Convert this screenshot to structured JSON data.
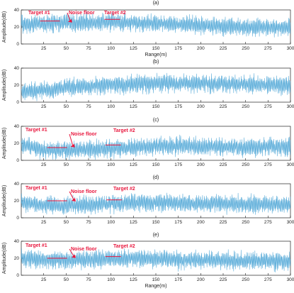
{
  "chart_data": [
    {
      "type": "line",
      "title": "(a)",
      "xlabel": "Range(m)",
      "ylabel": "Amplitude(dB)",
      "xlim": [
        0,
        300
      ],
      "ylim": [
        0,
        40
      ],
      "xticks": [
        "25",
        "50",
        "75",
        "100",
        "125",
        "150",
        "175",
        "200",
        "225",
        "250",
        "275",
        "300"
      ],
      "yticks": [
        "0",
        "20",
        "40"
      ],
      "grid": false,
      "series": [
        {
          "color": "#3f9fd3",
          "x": [
            0,
            25,
            50,
            75,
            100,
            125,
            150,
            175,
            200,
            225,
            250,
            275,
            300
          ],
          "y": [
            23,
            24,
            25,
            25,
            26,
            25,
            24,
            23,
            22,
            21,
            20,
            20,
            19
          ]
        }
      ],
      "annotations": [
        {
          "text": "Target #1",
          "x": 32,
          "y": 27
        },
        {
          "text": "Noise floor",
          "x": 52,
          "y": 26
        },
        {
          "text": "Target #2",
          "x": 103,
          "y": 29
        }
      ]
    },
    {
      "type": "line",
      "title": "(b)",
      "xlabel": "",
      "ylabel": "Amplitude(dB)",
      "xlim": [
        0,
        300
      ],
      "ylim": [
        0,
        40
      ],
      "xticks": [
        "25",
        "50",
        "75",
        "100",
        "125",
        "150",
        "175",
        "200",
        "225",
        "250",
        "275",
        "300"
      ],
      "yticks": [
        "0",
        "20",
        "40"
      ],
      "grid": false,
      "series": [
        {
          "color": "#3f9fd3",
          "x": [
            0,
            25,
            50,
            75,
            100,
            125,
            150,
            175,
            200,
            225,
            250,
            275,
            300
          ],
          "y": [
            12,
            14,
            17,
            19,
            20,
            21,
            22,
            22,
            22,
            21,
            21,
            20,
            20
          ]
        }
      ],
      "annotations": []
    },
    {
      "type": "line",
      "title": "(c)",
      "xlabel": "",
      "ylabel": "Amplitude(dB)",
      "xlim": [
        0,
        300
      ],
      "ylim": [
        0,
        40
      ],
      "xticks": [
        "25",
        "50",
        "75",
        "100",
        "125",
        "150",
        "175",
        "200",
        "225",
        "250",
        "275",
        "300"
      ],
      "yticks": [
        "0",
        "20",
        "40"
      ],
      "grid": false,
      "series": [
        {
          "color": "#3f9fd3",
          "x": [
            0,
            25,
            50,
            75,
            100,
            125,
            150,
            175,
            200,
            225,
            250,
            275,
            300
          ],
          "y": [
            18,
            12,
            12,
            13,
            14,
            15,
            17,
            17,
            16,
            16,
            15,
            16,
            16
          ]
        }
      ],
      "annotations": [
        {
          "text": "Target #1",
          "x": 40,
          "y": 15
        },
        {
          "text": "Noise floor",
          "x": 55,
          "y": 16
        },
        {
          "text": "Target #2",
          "x": 104,
          "y": 18
        }
      ]
    },
    {
      "type": "line",
      "title": "(d)",
      "xlabel": "",
      "ylabel": "Amplitude(dB)",
      "xlim": [
        0,
        300
      ],
      "ylim": [
        0,
        40
      ],
      "xticks": [
        "25",
        "50",
        "75",
        "100",
        "125",
        "150",
        "175",
        "200",
        "225",
        "250",
        "275",
        "300"
      ],
      "yticks": [
        "0",
        "20",
        "40"
      ],
      "grid": false,
      "series": [
        {
          "color": "#3f9fd3",
          "x": [
            0,
            25,
            50,
            75,
            100,
            125,
            150,
            175,
            200,
            225,
            250,
            275,
            300
          ],
          "y": [
            18,
            15,
            14,
            15,
            17,
            17,
            18,
            17,
            17,
            17,
            16,
            16,
            16
          ]
        }
      ],
      "annotations": [
        {
          "text": "Target #1",
          "x": 40,
          "y": 20
        },
        {
          "text": "Noise floor",
          "x": 56,
          "y": 20
        },
        {
          "text": "Target #2",
          "x": 105,
          "y": 21
        }
      ]
    },
    {
      "type": "line",
      "title": "(e)",
      "xlabel": "Range(m)",
      "ylabel": "Amplitude(dB)",
      "xlim": [
        0,
        300
      ],
      "ylim": [
        0,
        40
      ],
      "xticks": [
        "25",
        "50",
        "75",
        "100",
        "125",
        "150",
        "175",
        "200",
        "225",
        "250",
        "275",
        "300"
      ],
      "yticks": [
        "0",
        "20",
        "40"
      ],
      "grid": false,
      "series": [
        {
          "color": "#3f9fd3",
          "x": [
            0,
            25,
            50,
            75,
            100,
            125,
            150,
            175,
            200,
            225,
            250,
            275,
            300
          ],
          "y": [
            20,
            18,
            17,
            18,
            20,
            19,
            19,
            18,
            18,
            17,
            17,
            17,
            16
          ]
        }
      ],
      "annotations": [
        {
          "text": "Target #1",
          "x": 40,
          "y": 20
        },
        {
          "text": "Noise floor",
          "x": 56,
          "y": 21
        },
        {
          "text": "Target #2",
          "x": 104,
          "y": 22
        }
      ]
    }
  ],
  "colors": {
    "accent": "#e8193f",
    "series": "#3f9fd3",
    "axis": "#222222"
  }
}
